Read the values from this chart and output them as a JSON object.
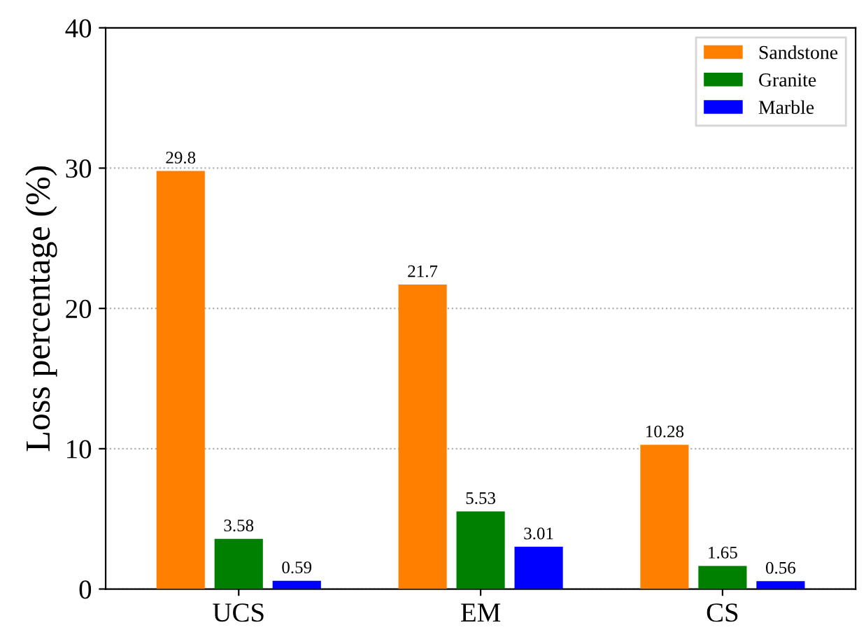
{
  "chart_data": {
    "type": "bar",
    "ylabel": "Loss percentage (%)",
    "categories": [
      "UCS",
      "EM",
      "CS"
    ],
    "series": [
      {
        "name": "Sandstone",
        "color": "#ff8000",
        "values": [
          29.8,
          21.7,
          10.28
        ]
      },
      {
        "name": "Granite",
        "color": "#008000",
        "values": [
          3.58,
          5.53,
          1.65
        ]
      },
      {
        "name": "Marble",
        "color": "#0000ff",
        "values": [
          0.59,
          3.01,
          0.56
        ]
      }
    ],
    "ylim": [
      0,
      40
    ],
    "yticks": [
      0,
      10,
      20,
      30,
      40
    ],
    "grid": "y",
    "legend": "top right",
    "data_labels": true
  }
}
